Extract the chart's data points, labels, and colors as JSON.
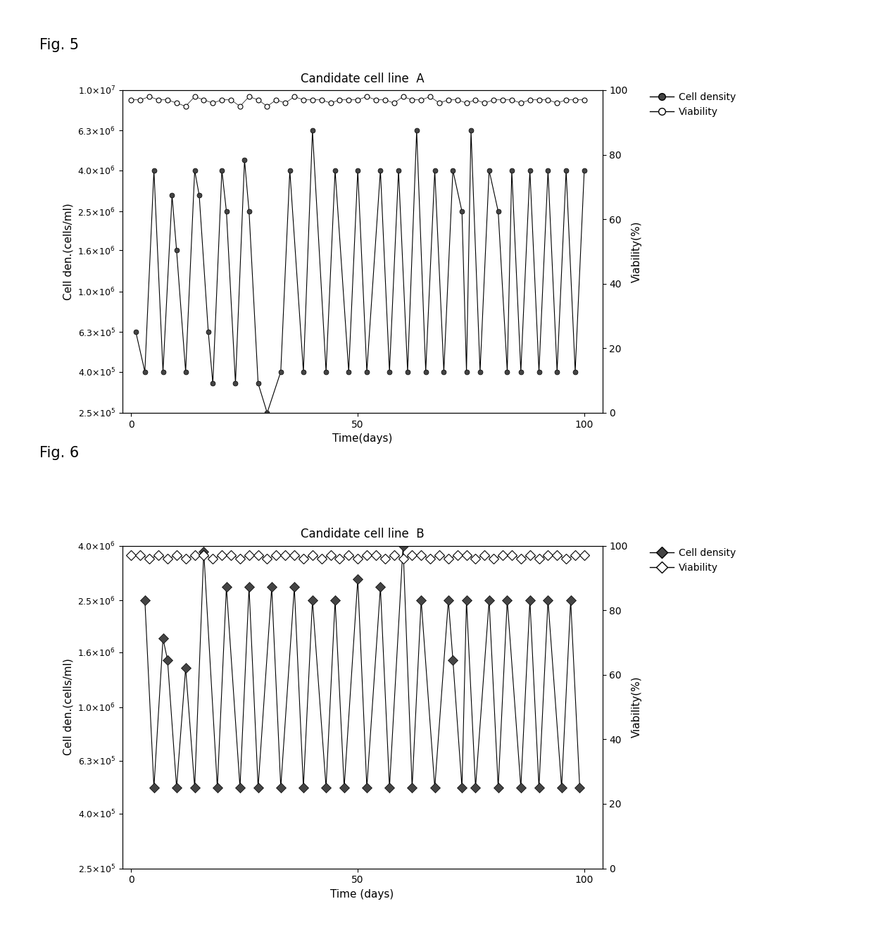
{
  "fig5_title": "Candidate cell line  A",
  "fig6_title": "Candidate cell line  B",
  "fig5_xlabel": "Time(days)",
  "fig6_xlabel": "Time (days)",
  "ylabel": "Cell den.(cells/ml)",
  "ylabel2": "Viability(%)",
  "fig_label1": "Fig. 5",
  "fig_label2": "Fig. 6",
  "legend_density": "Cell density",
  "legend_viability": "Viability",
  "fig5_cell_density_days": [
    1,
    3,
    5,
    7,
    9,
    10,
    12,
    14,
    15,
    17,
    18,
    20,
    21,
    23,
    25,
    26,
    28,
    30,
    33,
    35,
    38,
    40,
    43,
    45,
    48,
    50,
    52,
    55,
    57,
    59,
    61,
    63,
    65,
    67,
    69,
    71,
    73,
    74,
    75,
    77,
    79,
    81,
    83,
    84,
    86,
    88,
    90,
    92,
    94,
    96,
    98,
    100
  ],
  "fig5_cell_density_vals": [
    630000,
    400000,
    4000000,
    400000,
    3000000,
    1600000,
    400000,
    4000000,
    3000000,
    630000,
    350000,
    4000000,
    2500000,
    350000,
    4500000,
    2500000,
    350000,
    250000,
    400000,
    4000000,
    400000,
    6300000,
    400000,
    4000000,
    400000,
    4000000,
    400000,
    4000000,
    400000,
    4000000,
    400000,
    6300000,
    400000,
    4000000,
    400000,
    4000000,
    2500000,
    400000,
    6300000,
    400000,
    4000000,
    2500000,
    400000,
    4000000,
    400000,
    4000000,
    400000,
    4000000,
    400000,
    4000000,
    400000,
    4000000
  ],
  "fig5_viability_days": [
    0,
    2,
    4,
    6,
    8,
    10,
    12,
    14,
    16,
    18,
    20,
    22,
    24,
    26,
    28,
    30,
    32,
    34,
    36,
    38,
    40,
    42,
    44,
    46,
    48,
    50,
    52,
    54,
    56,
    58,
    60,
    62,
    64,
    66,
    68,
    70,
    72,
    74,
    76,
    78,
    80,
    82,
    84,
    86,
    88,
    90,
    92,
    94,
    96,
    98,
    100
  ],
  "fig5_viability_vals": [
    97,
    97,
    98,
    97,
    97,
    96,
    95,
    98,
    97,
    96,
    97,
    97,
    95,
    98,
    97,
    95,
    97,
    96,
    98,
    97,
    97,
    97,
    96,
    97,
    97,
    97,
    98,
    97,
    97,
    96,
    98,
    97,
    97,
    98,
    96,
    97,
    97,
    96,
    97,
    96,
    97,
    97,
    97,
    96,
    97,
    97,
    97,
    96,
    97,
    97,
    97
  ],
  "fig6_cell_density_days": [
    3,
    5,
    7,
    8,
    10,
    12,
    14,
    16,
    19,
    21,
    24,
    26,
    28,
    31,
    33,
    36,
    38,
    40,
    43,
    45,
    47,
    50,
    52,
    55,
    57,
    60,
    62,
    64,
    67,
    70,
    71,
    73,
    74,
    76,
    79,
    81,
    83,
    86,
    88,
    90,
    92,
    95,
    97,
    99
  ],
  "fig6_cell_density_vals": [
    2500000,
    500000,
    1800000,
    1500000,
    500000,
    1400000,
    500000,
    3800000,
    500000,
    2800000,
    500000,
    2800000,
    500000,
    2800000,
    500000,
    2800000,
    500000,
    2500000,
    500000,
    2500000,
    500000,
    3000000,
    500000,
    2800000,
    500000,
    4000000,
    500000,
    2500000,
    500000,
    2500000,
    1500000,
    500000,
    2500000,
    500000,
    2500000,
    500000,
    2500000,
    500000,
    2500000,
    500000,
    2500000,
    500000,
    2500000,
    500000
  ],
  "fig6_viability_days": [
    0,
    2,
    4,
    6,
    8,
    10,
    12,
    14,
    16,
    18,
    20,
    22,
    24,
    26,
    28,
    30,
    32,
    34,
    36,
    38,
    40,
    42,
    44,
    46,
    48,
    50,
    52,
    54,
    56,
    58,
    60,
    62,
    64,
    66,
    68,
    70,
    72,
    74,
    76,
    78,
    80,
    82,
    84,
    86,
    88,
    90,
    92,
    94,
    96,
    98,
    100
  ],
  "fig6_viability_vals": [
    97,
    97,
    96,
    97,
    96,
    97,
    96,
    97,
    97,
    96,
    97,
    97,
    96,
    97,
    97,
    96,
    97,
    97,
    97,
    96,
    97,
    96,
    97,
    96,
    97,
    96,
    97,
    97,
    96,
    97,
    96,
    97,
    97,
    96,
    97,
    96,
    97,
    97,
    96,
    97,
    96,
    97,
    97,
    96,
    97,
    96,
    97,
    97,
    96,
    97,
    97
  ],
  "bg_color": "#ffffff",
  "fig5_ylim_min": 250000.0,
  "fig5_ylim_max": 10000000.0,
  "fig6_ylim_min": 250000.0,
  "fig6_ylim_max": 4000000.0,
  "xlim_min": -2,
  "xlim_max": 104,
  "viability_ylim_min": 0,
  "viability_ylim_max": 100
}
